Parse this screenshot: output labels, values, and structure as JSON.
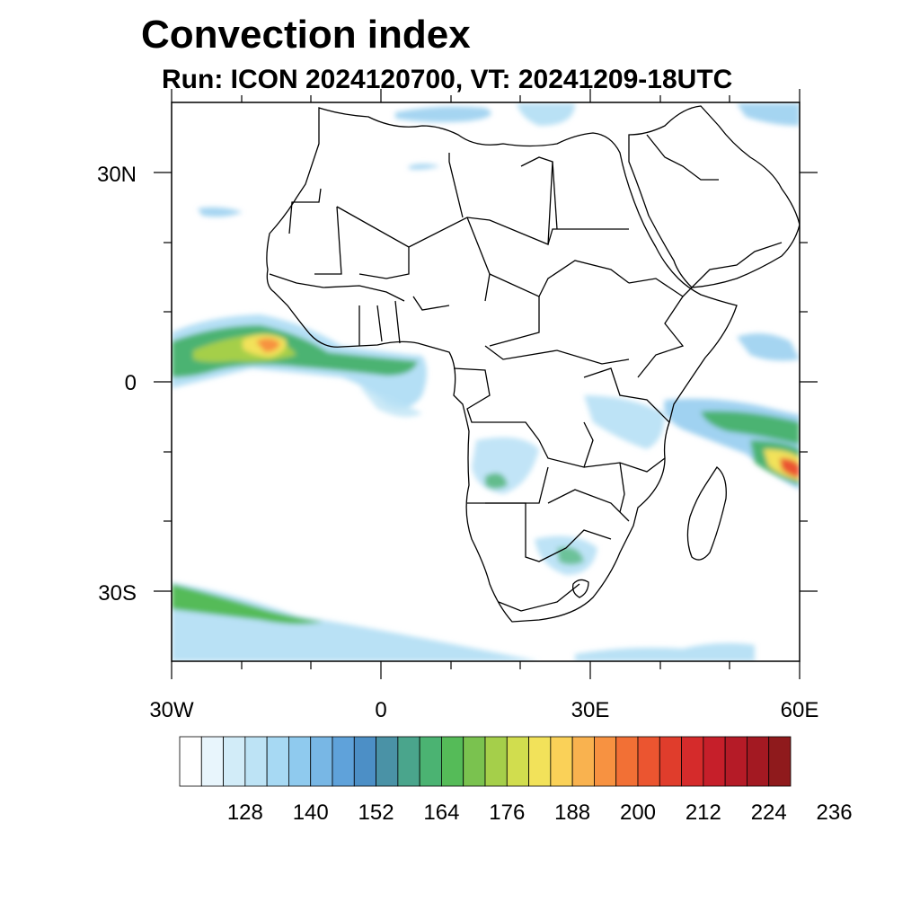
{
  "header": {
    "title": "Convection index",
    "subtitle": "Run: ICON 2024120700,  VT: 20241209-18UTC"
  },
  "map": {
    "lat_labels": [
      "30N",
      "0",
      "30S"
    ],
    "lon_labels": [
      "30W",
      "0",
      "30E",
      "60E"
    ]
  },
  "colorbar": {
    "labels": [
      "128",
      "140",
      "152",
      "164",
      "176",
      "188",
      "200",
      "212",
      "224",
      "236"
    ],
    "colors": [
      "#ffffff",
      "#e8f5fc",
      "#d2ecf8",
      "#bde3f5",
      "#a7d9f3",
      "#8fcaee",
      "#78b7e5",
      "#5fa2da",
      "#4c8fc6",
      "#4a92a6",
      "#4aa58c",
      "#4bb372",
      "#55bb58",
      "#7ac24f",
      "#a5cf4a",
      "#d1dd4e",
      "#f2e25a",
      "#fad158",
      "#f9b24f",
      "#f79241",
      "#f27035",
      "#eb5530",
      "#e03d2c",
      "#d52b2b",
      "#c61f2a",
      "#b51b27",
      "#a31922",
      "#8f1a1c"
    ]
  }
}
